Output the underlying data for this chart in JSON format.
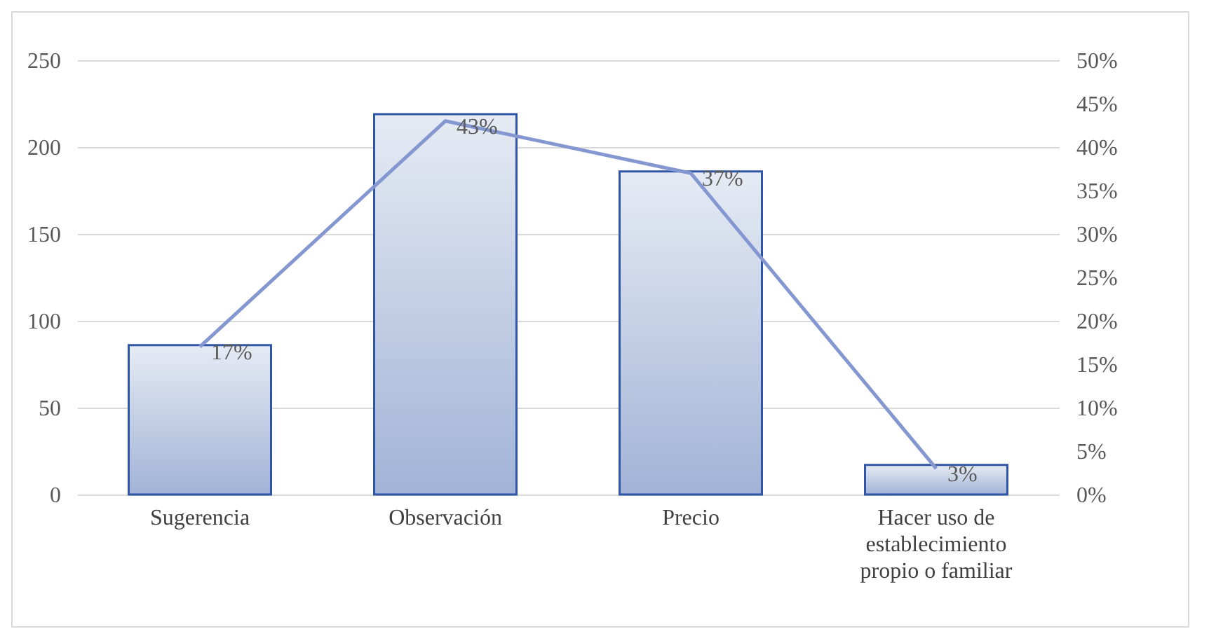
{
  "chart_data": {
    "type": "bar",
    "categories": [
      "Sugerencia",
      "Observación",
      "Precio",
      "Hacer uso de establecimiento propio o familiar"
    ],
    "series": [
      {
        "color": "#2f55a4",
        "values": [
          86,
          219,
          186,
          17
        ]
      },
      {
        "type": "line",
        "axis": "y2",
        "color": "#8497d0",
        "values": [
          17,
          43,
          37,
          3
        ],
        "value_labels": [
          "17%",
          "43%",
          "37%",
          "3%"
        ]
      }
    ],
    "ylim": [
      0,
      250
    ],
    "yticks": [
      0,
      50,
      100,
      150,
      200,
      250
    ],
    "y2lim": [
      0,
      50
    ],
    "y2ticks": [
      {
        "value": 0,
        "label": "0%"
      },
      {
        "value": 5,
        "label": "5%"
      },
      {
        "value": 10,
        "label": "10%"
      },
      {
        "value": 15,
        "label": "15%"
      },
      {
        "value": 20,
        "label": "20%"
      },
      {
        "value": 25,
        "label": "25%"
      },
      {
        "value": 30,
        "label": "30%"
      },
      {
        "value": 35,
        "label": "35%"
      },
      {
        "value": 40,
        "label": "40%"
      },
      {
        "value": 45,
        "label": "45%"
      },
      {
        "value": 50,
        "label": "50%"
      }
    ],
    "grid": "y"
  }
}
